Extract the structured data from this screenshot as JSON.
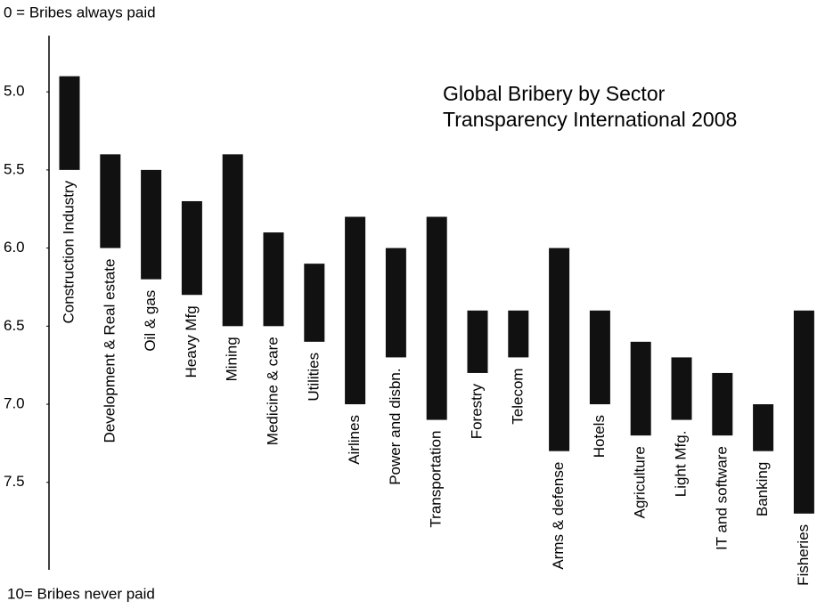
{
  "chart_data": {
    "type": "floating-bar",
    "title": "Global Bribery by Sector",
    "subtitle": "Transparency International 2008",
    "top_label": "0 = Bribes always paid",
    "bottom_label": "10= Bribes never paid",
    "categories": [
      "Construction Industry",
      "Development & Real estate",
      "Oil & gas",
      "Heavy Mfg",
      "Mining",
      "Medicine & care",
      "Utilities",
      "Airlines",
      "Power and disbn.",
      "Transportation",
      "Forestry",
      "Telecom",
      "Arms & defense",
      "Hotels",
      "Agriculture",
      "Light Mfg.",
      "IT and software",
      "Banking",
      "Fisheries"
    ],
    "start": [
      4.9,
      5.4,
      5.5,
      5.7,
      5.4,
      5.9,
      6.1,
      5.8,
      6.0,
      5.8,
      6.4,
      6.4,
      6.0,
      6.4,
      6.6,
      6.7,
      6.8,
      7.0,
      6.4
    ],
    "end": [
      5.5,
      6.0,
      6.2,
      6.3,
      6.5,
      6.5,
      6.6,
      7.0,
      6.7,
      7.1,
      6.8,
      6.7,
      7.3,
      7.0,
      7.2,
      7.1,
      7.2,
      7.3,
      7.7
    ],
    "color": "#111111",
    "ylim": [
      4.64,
      8.06
    ],
    "yticks": [
      {
        "value": 5,
        "label": "5.0"
      },
      5.5,
      {
        "value": 6,
        "label": "6.0"
      },
      6.5,
      {
        "value": 7,
        "label": "7.0"
      },
      7.5
    ],
    "y_inverted": true
  }
}
